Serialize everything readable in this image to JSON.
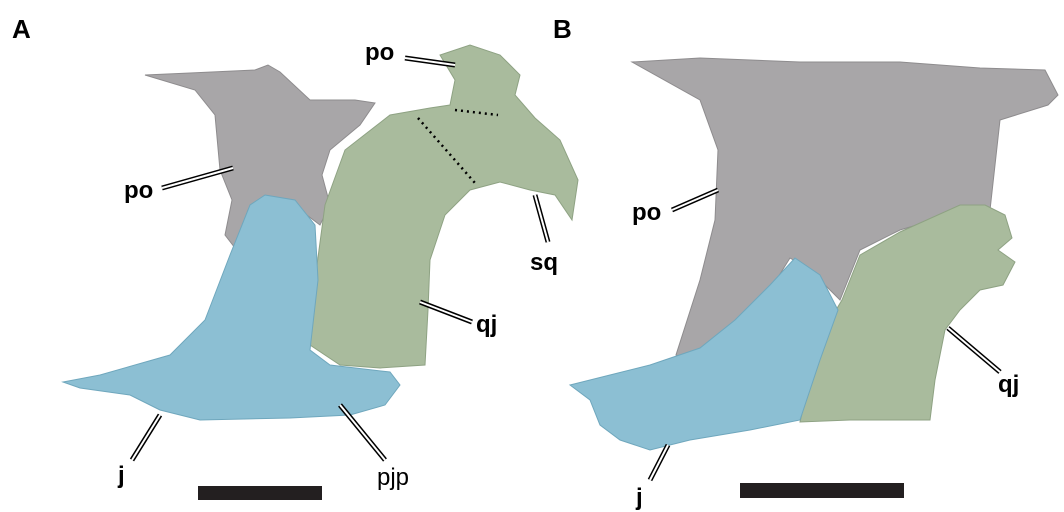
{
  "panels": [
    {
      "label": "A",
      "annotations": [
        "po",
        "po",
        "sq",
        "qj",
        "j",
        "pjp"
      ]
    },
    {
      "label": "B",
      "annotations": [
        "po",
        "qj",
        "j"
      ]
    }
  ]
}
